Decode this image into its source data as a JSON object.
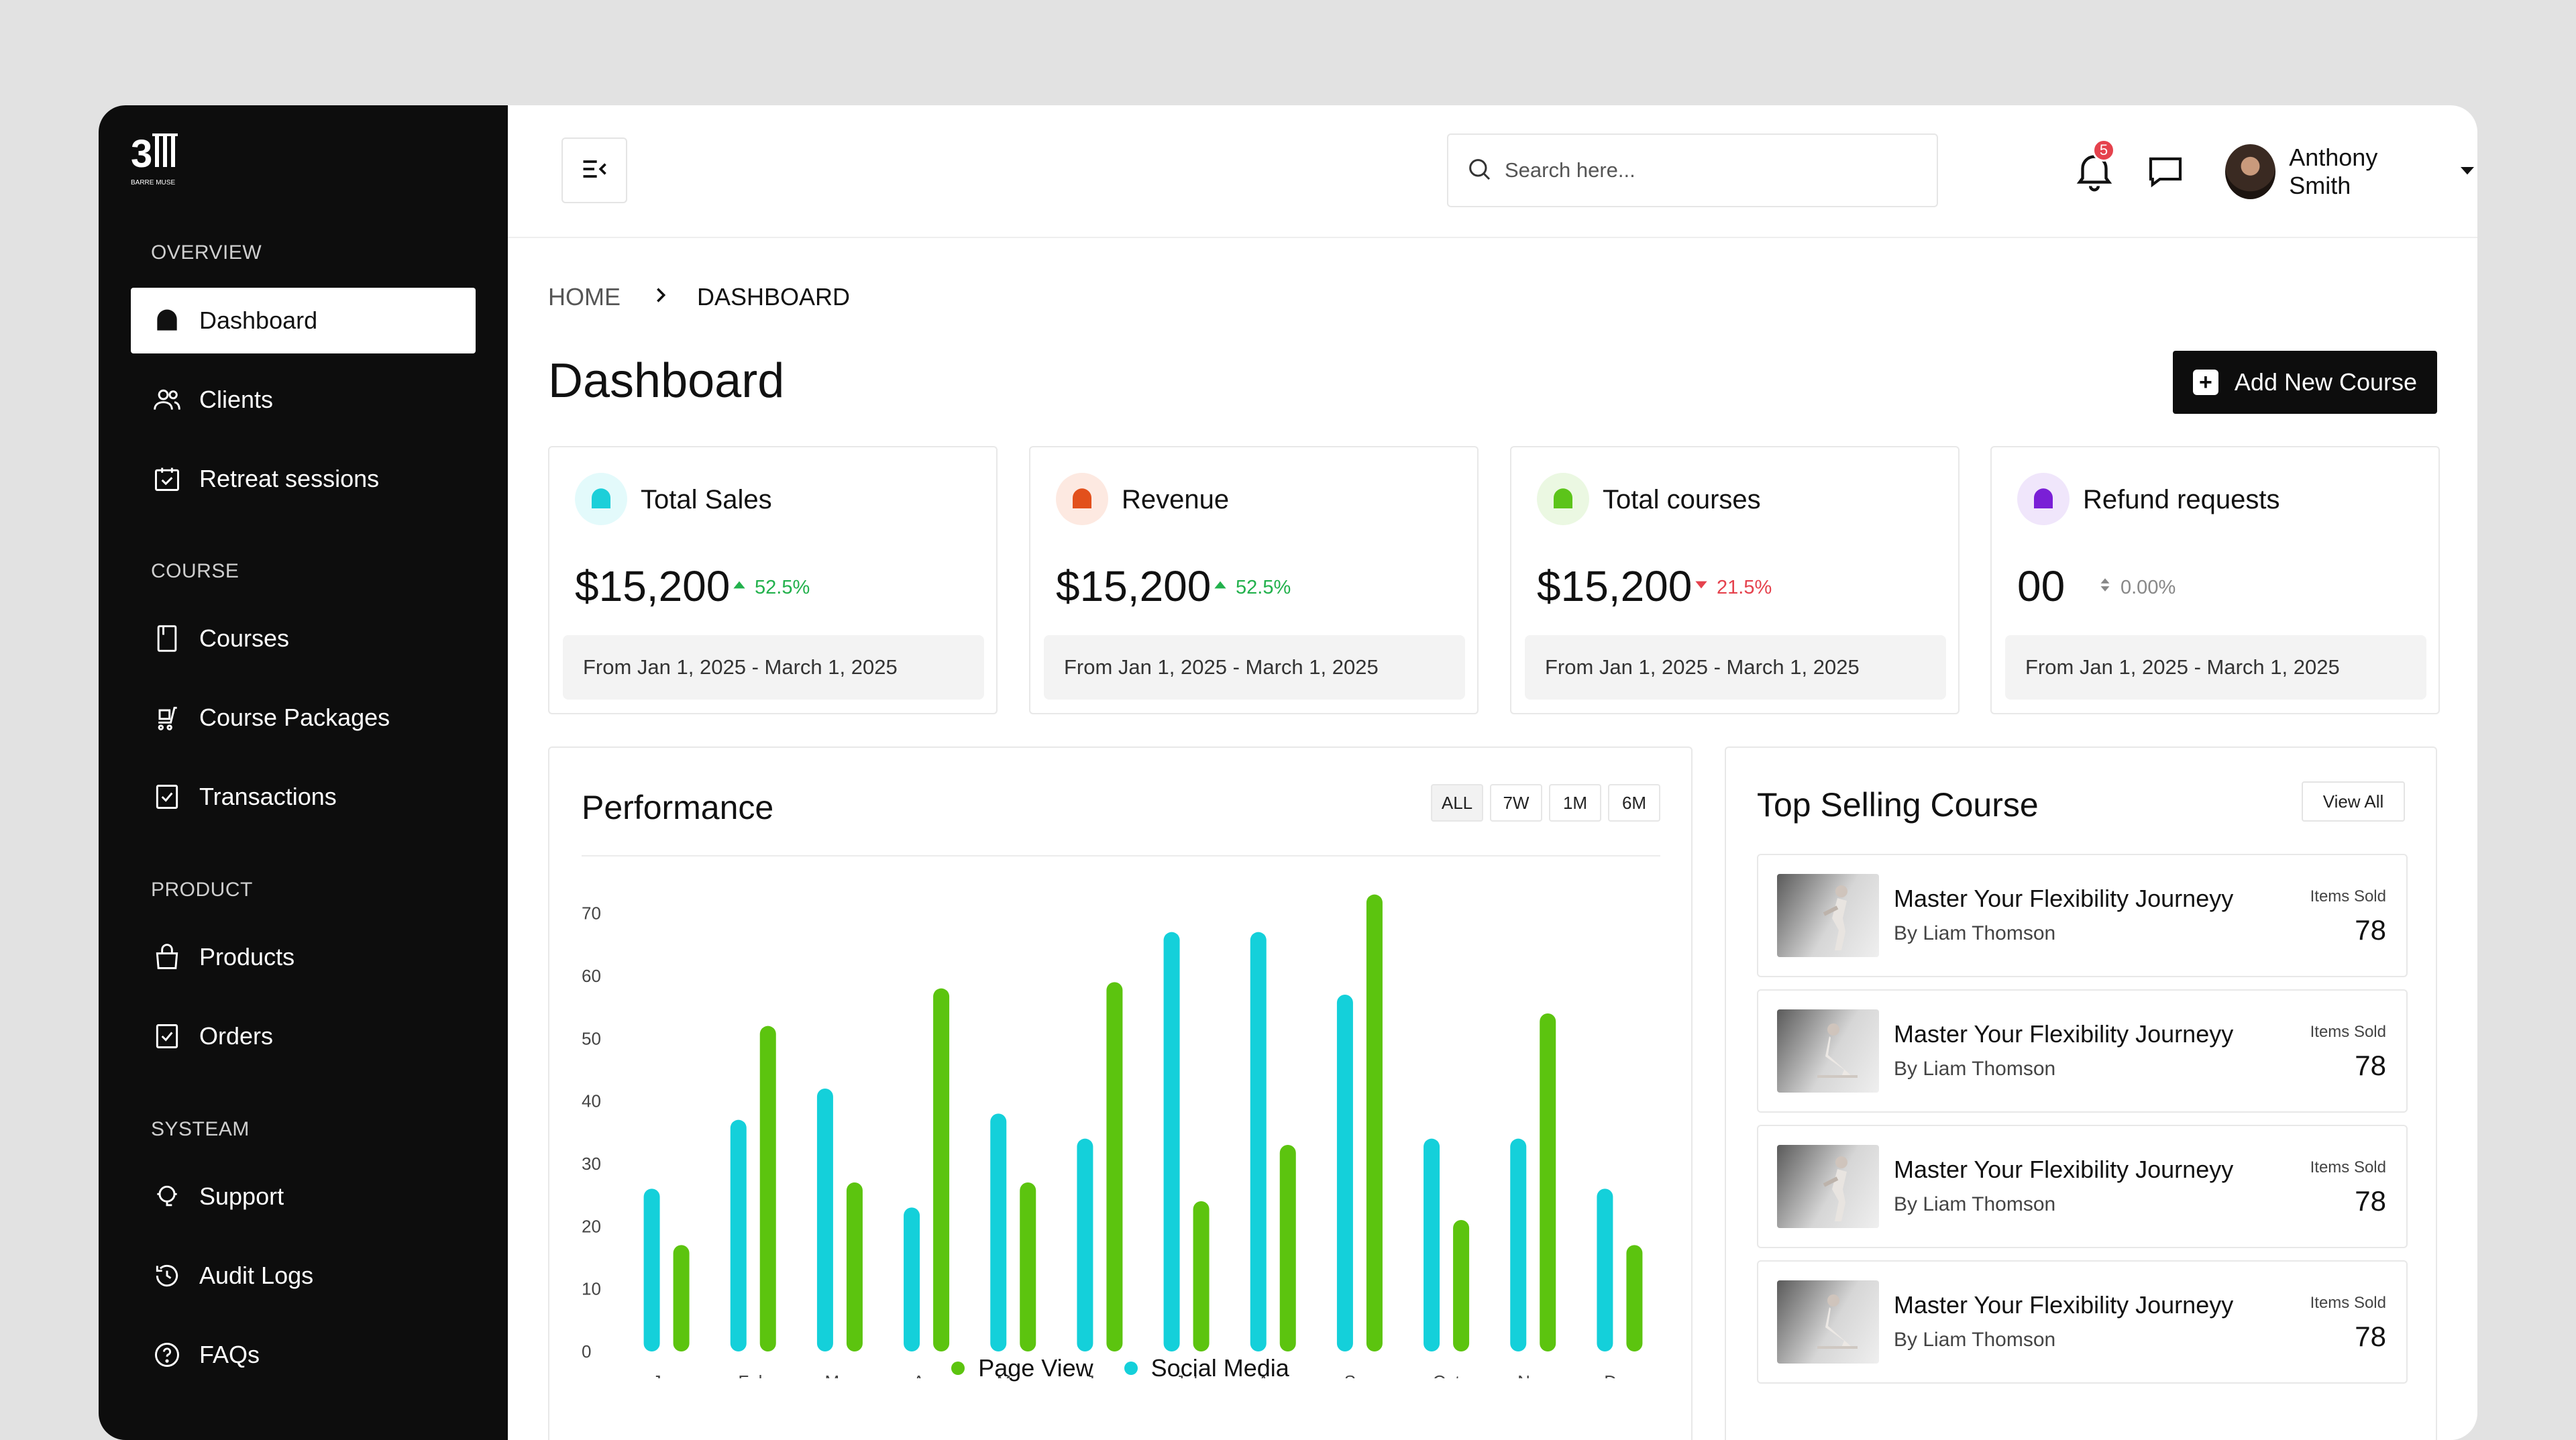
{
  "brand": {
    "logo_text": "BARRE MUSE"
  },
  "sidebar": {
    "sections": [
      {
        "label": "OVERVIEW",
        "items": [
          {
            "label": "Dashboard",
            "icon": "home-icon",
            "active": true
          },
          {
            "label": "Clients",
            "icon": "users-icon"
          },
          {
            "label": "Retreat sessions",
            "icon": "calendar-check-icon"
          }
        ]
      },
      {
        "label": "COURSE",
        "items": [
          {
            "label": "Courses",
            "icon": "book-icon"
          },
          {
            "label": "Course Packages",
            "icon": "cart-icon"
          },
          {
            "label": "Transactions",
            "icon": "receipt-icon"
          }
        ]
      },
      {
        "label": "PRODUCT",
        "items": [
          {
            "label": "Products",
            "icon": "bag-icon"
          },
          {
            "label": "Orders",
            "icon": "clipboard-icon"
          }
        ]
      },
      {
        "label": "SYSTEAM",
        "items": [
          {
            "label": "Support",
            "icon": "support-icon"
          },
          {
            "label": "Audit Logs",
            "icon": "history-icon"
          },
          {
            "label": "FAQs",
            "icon": "help-circle-icon"
          }
        ]
      }
    ]
  },
  "header": {
    "search_placeholder": "Search here...",
    "notification_count": "5",
    "user_name": "Anthony Smith"
  },
  "breadcrumb": {
    "home": "HOME",
    "current": "DASHBOARD"
  },
  "page": {
    "title": "Dashboard",
    "add_button": "Add New Course"
  },
  "stats": [
    {
      "label": "Total Sales",
      "value": "$15,200",
      "delta": "52.5%",
      "trend": "up",
      "range": "From Jan 1, 2025 - March 1, 2025",
      "color": "#1ccfd9",
      "bg": "#e3fafb"
    },
    {
      "label": "Revenue",
      "value": "$15,200",
      "delta": "52.5%",
      "trend": "up",
      "range": "From Jan 1, 2025 - March 1, 2025",
      "color": "#e2501c",
      "bg": "#fde9e1"
    },
    {
      "label": "Total courses",
      "value": "$15,200",
      "delta": "21.5%",
      "trend": "down",
      "range": "From Jan 1, 2025 - March 1, 2025",
      "color": "#5cc41a",
      "bg": "#ebf8e2"
    },
    {
      "label": "Refund requests",
      "value": "00",
      "delta": "0.00%",
      "trend": "flat",
      "range": "From Jan 1, 2025 - March 1, 2025",
      "color": "#7a1fd6",
      "bg": "#f0e6fb"
    }
  ],
  "colors": {
    "up": "#22b14c",
    "down": "#e5424d",
    "flat": "#888888",
    "page_view": "#5cc40f",
    "social_media": "#14d0da"
  },
  "performance": {
    "title": "Performance",
    "ranges": [
      "ALL",
      "7W",
      "1M",
      "6M"
    ],
    "active_range": "ALL"
  },
  "chart_data": {
    "type": "bar",
    "categories": [
      "Jan",
      "Feb",
      "Mar",
      "Apr",
      "May",
      "Jun",
      "Jul",
      "Aug",
      "Sep",
      "Oct",
      "Nov",
      "Dec"
    ],
    "series": [
      {
        "name": "Social Media",
        "values": [
          26,
          37,
          42,
          23,
          38,
          34,
          67,
          67,
          57,
          34,
          34,
          26
        ]
      },
      {
        "name": "Page View",
        "values": [
          17,
          52,
          27,
          58,
          27,
          59,
          24,
          33,
          73,
          21,
          54,
          17
        ]
      }
    ],
    "yticks": [
      0,
      10,
      20,
      30,
      40,
      50,
      60,
      70
    ],
    "ylim": [
      0,
      75
    ],
    "legend": [
      "Page View",
      "Social Media"
    ],
    "legend_position": "bottom"
  },
  "top_selling": {
    "title": "Top Selling Course",
    "view_all": "View All",
    "items": [
      {
        "name": "Master Your Flexibility Journeyy",
        "author": "By Liam Thomson",
        "sold_label": "Items Sold",
        "sold": "78"
      },
      {
        "name": "Master Your Flexibility Journeyy",
        "author": "By Liam Thomson",
        "sold_label": "Items Sold",
        "sold": "78"
      },
      {
        "name": "Master Your Flexibility Journeyy",
        "author": "By Liam Thomson",
        "sold_label": "Items Sold",
        "sold": "78"
      },
      {
        "name": "Master Your Flexibility Journeyy",
        "author": "By Liam Thomson",
        "sold_label": "Items Sold",
        "sold": "78"
      }
    ]
  }
}
